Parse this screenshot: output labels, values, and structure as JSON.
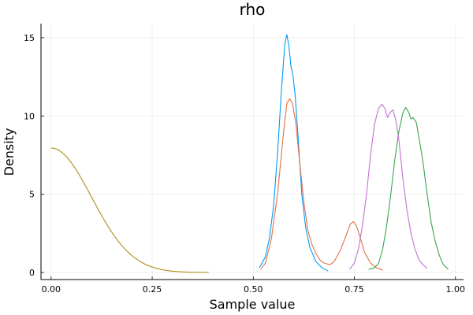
{
  "chart_data": {
    "type": "line",
    "title": "rho",
    "xlabel": "Sample value",
    "ylabel": "Density",
    "xlim": [
      -0.025,
      1.02
    ],
    "ylim": [
      -0.45,
      15.9
    ],
    "x_ticks": [
      0.0,
      0.25,
      0.5,
      0.75,
      1.0
    ],
    "x_tick_labels": [
      "0.00",
      "0.25",
      "0.50",
      "0.75",
      "1.00"
    ],
    "y_ticks": [
      0,
      5,
      10,
      15
    ],
    "y_tick_labels": [
      "0",
      "5",
      "10",
      "15"
    ],
    "grid": true,
    "legend": "none",
    "series": [
      {
        "color": "#009af9",
        "points": [
          [
            0.515,
            0.3
          ],
          [
            0.53,
            1.0
          ],
          [
            0.54,
            2.2
          ],
          [
            0.55,
            4.2
          ],
          [
            0.56,
            7.6
          ],
          [
            0.57,
            11.8
          ],
          [
            0.578,
            14.6
          ],
          [
            0.583,
            15.2
          ],
          [
            0.588,
            14.5
          ],
          [
            0.593,
            13.2
          ],
          [
            0.598,
            12.6
          ],
          [
            0.603,
            11.5
          ],
          [
            0.61,
            9.0
          ],
          [
            0.62,
            5.0
          ],
          [
            0.63,
            2.8
          ],
          [
            0.64,
            1.6
          ],
          [
            0.655,
            0.7
          ],
          [
            0.67,
            0.3
          ],
          [
            0.685,
            0.1
          ]
        ]
      },
      {
        "color": "#e26f46",
        "points": [
          [
            0.518,
            0.2
          ],
          [
            0.53,
            0.6
          ],
          [
            0.545,
            2.2
          ],
          [
            0.56,
            5.0
          ],
          [
            0.575,
            9.0
          ],
          [
            0.583,
            10.8
          ],
          [
            0.59,
            11.1
          ],
          [
            0.597,
            10.8
          ],
          [
            0.605,
            9.6
          ],
          [
            0.615,
            7.0
          ],
          [
            0.625,
            4.5
          ],
          [
            0.635,
            2.7
          ],
          [
            0.645,
            1.8
          ],
          [
            0.655,
            1.2
          ],
          [
            0.665,
            0.8
          ],
          [
            0.675,
            0.6
          ],
          [
            0.69,
            0.5
          ],
          [
            0.7,
            0.7
          ],
          [
            0.715,
            1.4
          ],
          [
            0.73,
            2.4
          ],
          [
            0.74,
            3.1
          ],
          [
            0.748,
            3.25
          ],
          [
            0.755,
            3.0
          ],
          [
            0.765,
            2.2
          ],
          [
            0.775,
            1.3
          ],
          [
            0.79,
            0.6
          ],
          [
            0.805,
            0.3
          ],
          [
            0.82,
            0.15
          ]
        ]
      },
      {
        "color": "#3da44d",
        "points": [
          [
            0.785,
            0.2
          ],
          [
            0.8,
            0.3
          ],
          [
            0.81,
            0.6
          ],
          [
            0.82,
            1.5
          ],
          [
            0.83,
            3.0
          ],
          [
            0.84,
            5.0
          ],
          [
            0.85,
            7.2
          ],
          [
            0.86,
            9.0
          ],
          [
            0.87,
            10.2
          ],
          [
            0.877,
            10.55
          ],
          [
            0.885,
            10.2
          ],
          [
            0.89,
            9.8
          ],
          [
            0.895,
            9.9
          ],
          [
            0.903,
            9.6
          ],
          [
            0.91,
            8.6
          ],
          [
            0.92,
            7.0
          ],
          [
            0.93,
            5.0
          ],
          [
            0.94,
            3.2
          ],
          [
            0.95,
            2.0
          ],
          [
            0.96,
            1.1
          ],
          [
            0.97,
            0.5
          ],
          [
            0.982,
            0.2
          ]
        ]
      },
      {
        "color": "#c271d2",
        "points": [
          [
            0.738,
            0.2
          ],
          [
            0.75,
            0.6
          ],
          [
            0.76,
            1.5
          ],
          [
            0.77,
            3.0
          ],
          [
            0.78,
            5.0
          ],
          [
            0.79,
            7.5
          ],
          [
            0.8,
            9.5
          ],
          [
            0.81,
            10.5
          ],
          [
            0.818,
            10.75
          ],
          [
            0.825,
            10.5
          ],
          [
            0.832,
            9.9
          ],
          [
            0.838,
            10.2
          ],
          [
            0.845,
            10.4
          ],
          [
            0.852,
            9.8
          ],
          [
            0.86,
            8.5
          ],
          [
            0.87,
            6.0
          ],
          [
            0.88,
            4.0
          ],
          [
            0.89,
            2.5
          ],
          [
            0.9,
            1.5
          ],
          [
            0.91,
            0.8
          ],
          [
            0.92,
            0.5
          ],
          [
            0.93,
            0.25
          ]
        ]
      },
      {
        "color": "#ac8d18",
        "function": "half-normal",
        "x_range": [
          0.0,
          0.39
        ],
        "peak": 7.95,
        "sd": 0.1
      }
    ]
  }
}
